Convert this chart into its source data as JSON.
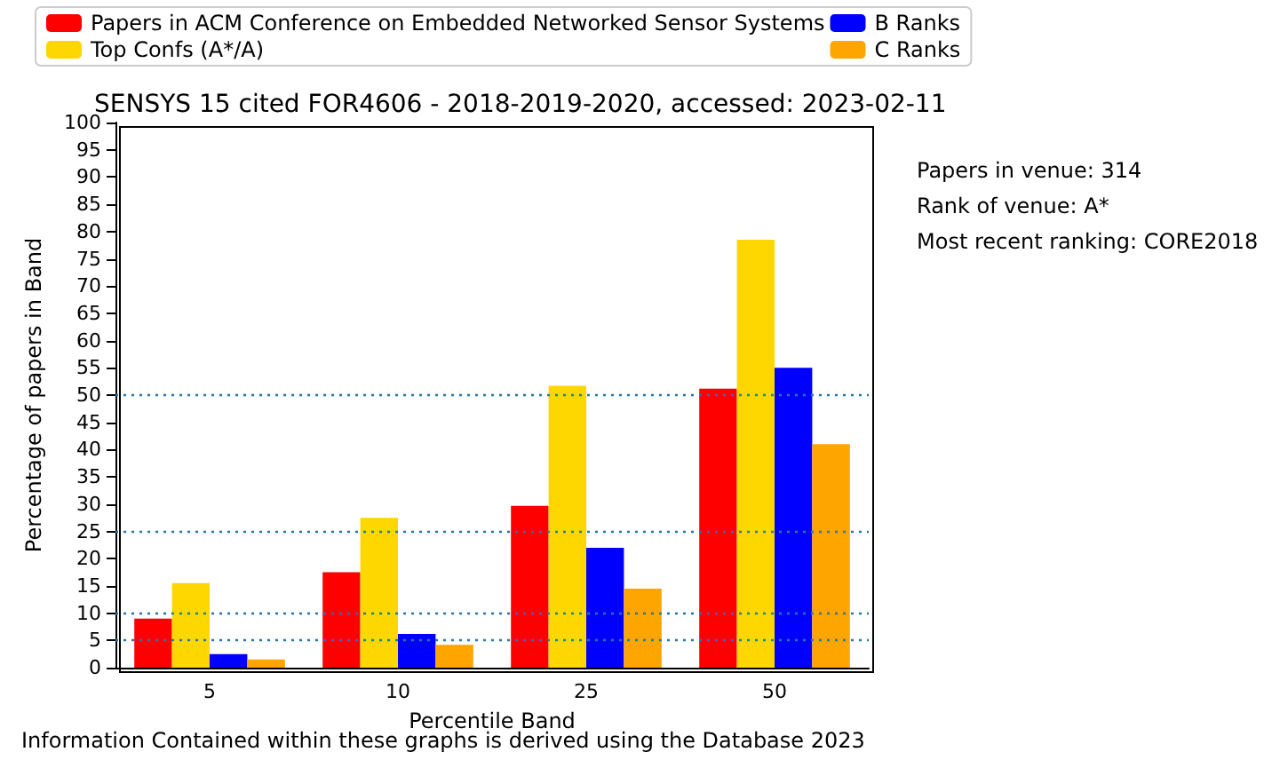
{
  "chart_data": {
    "type": "bar",
    "title": "SENSYS 15 cited FOR4606 - 2018-2019-2020, accessed: 2023-02-11",
    "xlabel": "Percentile Band",
    "ylabel": "Percentage of papers in Band",
    "categories": [
      "5",
      "10",
      "25",
      "50"
    ],
    "series": [
      {
        "name": "Papers in ACM Conference on Embedded Networked Sensor Systems",
        "color": "#ff0000",
        "values": [
          9,
          17.5,
          29.7,
          51.2
        ]
      },
      {
        "name": "Top Confs (A*/A)",
        "color": "#ffd700",
        "values": [
          15.5,
          27.5,
          51.7,
          78.5
        ]
      },
      {
        "name": "B Ranks",
        "color": "#0000ff",
        "values": [
          2.5,
          6.2,
          22,
          55
        ]
      },
      {
        "name": "C Ranks",
        "color": "#ffa500",
        "values": [
          1.5,
          4.2,
          14.5,
          41
        ]
      }
    ],
    "ylim": [
      0,
      100
    ],
    "yticks": [
      0,
      5,
      10,
      15,
      20,
      25,
      30,
      35,
      40,
      45,
      50,
      55,
      60,
      65,
      70,
      75,
      80,
      85,
      90,
      95,
      100
    ],
    "ref_lines": [
      {
        "axis": "y",
        "value": 5,
        "color": "#1f77b4",
        "line_style": "dotted"
      },
      {
        "axis": "y",
        "value": 10,
        "color": "#1f77b4",
        "line_style": "dotted"
      },
      {
        "axis": "y",
        "value": 25,
        "color": "#1f77b4",
        "line_style": "dotted"
      },
      {
        "axis": "y",
        "value": 50,
        "color": "#1f77b4",
        "line_style": "dotted"
      }
    ],
    "annotations": [
      "Papers in venue: 314",
      "Rank of venue: A*",
      "Most recent ranking: CORE2018",
      "Information Contained within these graphs is derived using the Database 2023"
    ],
    "legend": "top",
    "grid": false
  }
}
